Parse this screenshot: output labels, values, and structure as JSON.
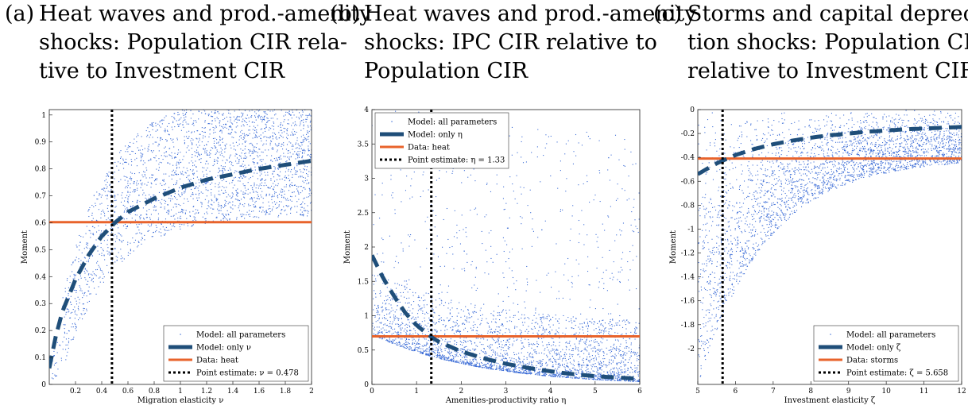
{
  "captions": [
    {
      "tag": "(a)",
      "lines": [
        "Heat waves and prod.-amenity",
        "shocks: Population CIR rela-",
        "tive to Investment CIR"
      ]
    },
    {
      "tag": "(b)",
      "lines": [
        "Heat waves and prod.-amenity",
        "shocks: IPC CIR relative to",
        "Population CIR"
      ]
    },
    {
      "tag": "(c)",
      "lines": [
        "Storms and capital deprecia-",
        "tion shocks: Population CIR",
        "relative to Investment CIR"
      ]
    }
  ],
  "colors": {
    "scatter": "#3a6bd6",
    "model_line": "#1f4e79",
    "data_line": "#e8632b",
    "point_estimate": "#000000"
  },
  "chart_data": [
    {
      "type": "scatter",
      "ylabel": "Moment",
      "xlabel": "Migration elasticity ν",
      "xlim": [
        0,
        2
      ],
      "ylim": [
        0,
        1.02
      ],
      "xticks": [
        "0.2",
        "0.4",
        "0.6",
        "0.8",
        "1",
        "1.2",
        "1.4",
        "1.6",
        "1.8",
        "2"
      ],
      "xtick_values": [
        0.2,
        0.4,
        0.6,
        0.8,
        1.0,
        1.2,
        1.4,
        1.6,
        1.8,
        2.0
      ],
      "yticks": [
        "0",
        "0.1",
        "0.2",
        "0.3",
        "0.4",
        "0.5",
        "0.6",
        "0.7",
        "0.8",
        "0.9",
        "1"
      ],
      "ytick_values": [
        0,
        0.1,
        0.2,
        0.3,
        0.4,
        0.5,
        0.6,
        0.7,
        0.8,
        0.9,
        1.0
      ],
      "model_only_line": {
        "x": [
          0.0,
          0.05,
          0.1,
          0.2,
          0.3,
          0.4,
          0.5,
          0.6,
          0.8,
          1.0,
          1.2,
          1.4,
          1.6,
          1.8,
          2.0
        ],
        "y": [
          0.06,
          0.18,
          0.27,
          0.39,
          0.48,
          0.55,
          0.6,
          0.64,
          0.69,
          0.73,
          0.76,
          0.78,
          0.8,
          0.815,
          0.83
        ]
      },
      "data_value": 0.602,
      "point_estimate": 0.478,
      "legend": {
        "position": "bottom-right",
        "entries": [
          "Model: all parameters",
          "Model: only ν",
          "Data: heat",
          "Point estimate: ν = 0.478"
        ]
      }
    },
    {
      "type": "scatter",
      "ylabel": "Moment",
      "xlabel": "Amenities-productivity ratio η",
      "xlim": [
        0,
        6
      ],
      "ylim": [
        0,
        4
      ],
      "xticks": [
        "0",
        "1",
        "2",
        "3",
        "4",
        "5",
        "6"
      ],
      "xtick_values": [
        0,
        1,
        2,
        3,
        4,
        5,
        6
      ],
      "yticks": [
        "0",
        "0.5",
        "1",
        "1.5",
        "2",
        "2.5",
        "3",
        "3.5",
        "4"
      ],
      "ytick_values": [
        0,
        0.5,
        1.0,
        1.5,
        2.0,
        2.5,
        3.0,
        3.5,
        4.0
      ],
      "model_only_line": {
        "x": [
          0.0,
          0.25,
          0.5,
          0.75,
          1.0,
          1.33,
          1.5,
          2.0,
          2.5,
          3.0,
          3.5,
          4.0,
          4.5,
          5.0,
          5.5,
          6.0
        ],
        "y": [
          1.88,
          1.55,
          1.28,
          1.04,
          0.86,
          0.69,
          0.62,
          0.48,
          0.38,
          0.3,
          0.24,
          0.19,
          0.15,
          0.12,
          0.1,
          0.08
        ]
      },
      "data_value": 0.7,
      "point_estimate": 1.33,
      "legend": {
        "position": "top-left",
        "entries": [
          "Model: all parameters",
          "Model: only η",
          "Data: heat",
          "Point estimate: η = 1.33"
        ]
      }
    },
    {
      "type": "scatter",
      "ylabel": "Moment",
      "xlabel": "Investment elasticity ζ",
      "xlim": [
        5,
        12
      ],
      "ylim": [
        -2.3,
        0
      ],
      "xticks": [
        "5",
        "6",
        "7",
        "8",
        "9",
        "10",
        "11",
        "12"
      ],
      "xtick_values": [
        5,
        6,
        7,
        8,
        9,
        10,
        11,
        12
      ],
      "yticks": [
        "-2",
        "-1.8",
        "-1.6",
        "-1.4",
        "-1.2",
        "-1",
        "-0.8",
        "-0.6",
        "-0.4",
        "-0.2",
        "0"
      ],
      "ytick_values": [
        -2.0,
        -1.8,
        -1.6,
        -1.4,
        -1.2,
        -1.0,
        -0.8,
        -0.6,
        -0.4,
        -0.2,
        0.0
      ],
      "model_only_line": {
        "x": [
          5.0,
          5.5,
          6.0,
          6.5,
          7.0,
          7.5,
          8.0,
          8.5,
          9.0,
          9.5,
          10.0,
          10.5,
          11.0,
          11.5,
          12.0
        ],
        "y": [
          -0.54,
          -0.45,
          -0.38,
          -0.33,
          -0.29,
          -0.26,
          -0.235,
          -0.215,
          -0.2,
          -0.185,
          -0.175,
          -0.165,
          -0.158,
          -0.152,
          -0.145
        ]
      },
      "data_value": -0.41,
      "point_estimate": 5.658,
      "legend": {
        "position": "bottom-right",
        "entries": [
          "Model: all parameters",
          "Model: only ζ",
          "Data: storms",
          "Point estimate: ζ = 5.658"
        ]
      }
    }
  ]
}
